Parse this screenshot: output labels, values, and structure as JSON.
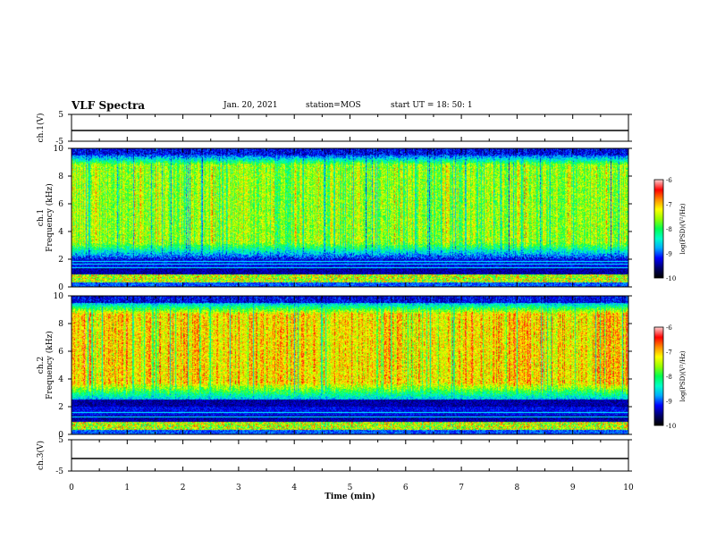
{
  "header": {
    "title": "VLF Spectra",
    "date": "Jan. 20, 2021",
    "station": "station=MOS",
    "start_ut": "start UT =  18: 50: 1"
  },
  "colors": {
    "spectro_scale": [
      "#000000",
      "#000080",
      "#0000ff",
      "#00c8ff",
      "#00ff80",
      "#80ff00",
      "#ffff00",
      "#ff8000",
      "#ff0000",
      "#ffffff"
    ],
    "baseline": "#000000",
    "cyan_line": "#00ffff"
  },
  "chart_data": [
    {
      "type": "line",
      "panel": "ch1-waveform",
      "ylabel": "ch.1(V)",
      "ylim": [
        -5,
        5
      ],
      "yticks": [
        "5",
        "-5"
      ],
      "xlim": [
        0,
        10
      ],
      "series": [
        {
          "x": [
            0,
            10
          ],
          "values": [
            -1,
            -1
          ]
        }
      ]
    },
    {
      "type": "heatmap",
      "panel": "ch1-spectrogram",
      "ylabel": "ch.1\nFrequency (kHz)",
      "ylim": [
        0,
        10
      ],
      "yticks": [
        "0",
        "2",
        "4",
        "6",
        "8",
        "10"
      ],
      "xlim": [
        0,
        10
      ],
      "colorbar": {
        "label": "log(PSD)(V²/Hz)",
        "ticks": [
          "-6",
          "-7",
          "-8",
          "-9",
          "-10"
        ],
        "range": [
          -10,
          -6
        ]
      },
      "band_kHz": [
        2,
        9.6
      ],
      "band_mean_logpsd": -7.6,
      "horizontal_lines_kHz": [
        1.9,
        1.65,
        1.4
      ]
    },
    {
      "type": "heatmap",
      "panel": "ch2-spectrogram",
      "ylabel": "ch.2\nFrequency (kHz)",
      "ylim": [
        0,
        10
      ],
      "yticks": [
        "0",
        "2",
        "4",
        "6",
        "8",
        "10"
      ],
      "xlim": [
        0,
        10
      ],
      "colorbar": {
        "label": "log(PSD)(V²/Hz)",
        "ticks": [
          "-6",
          "-7",
          "-8",
          "-9",
          "-10"
        ],
        "range": [
          -10,
          -6
        ]
      },
      "band_kHz": [
        2.5,
        9.5
      ],
      "band_mean_logpsd": -7.1,
      "horizontal_lines_kHz": [
        1.6,
        1.3
      ]
    },
    {
      "type": "line",
      "panel": "ch3-waveform",
      "ylabel": "ch.3(V)",
      "ylim": [
        -5,
        5
      ],
      "yticks": [
        "5",
        "-5"
      ],
      "xlim": [
        0,
        10
      ],
      "xlabel": "Time (min)",
      "xticks": [
        "0",
        "1",
        "2",
        "3",
        "4",
        "5",
        "6",
        "7",
        "8",
        "9",
        "10"
      ],
      "series": [
        {
          "x": [
            0,
            10
          ],
          "values": [
            -1,
            -1
          ]
        }
      ]
    }
  ]
}
